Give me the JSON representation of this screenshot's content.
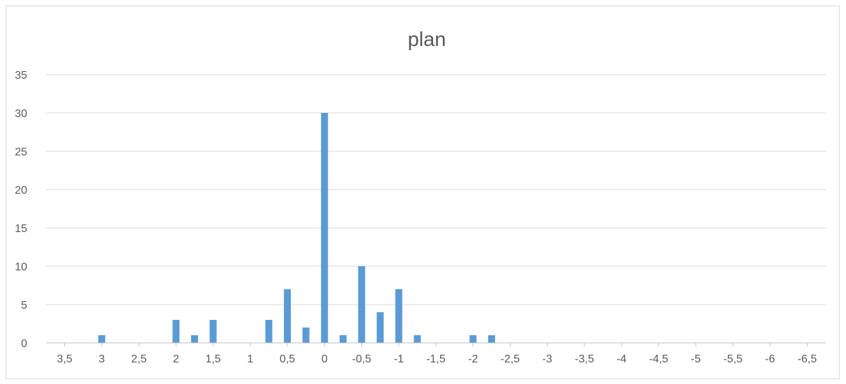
{
  "chart_data": {
    "type": "bar",
    "title": "plan",
    "xlabel": "",
    "ylabel": "",
    "ylim": [
      0,
      35
    ],
    "yticks": [
      "0",
      "5",
      "10",
      "15",
      "20",
      "25",
      "30",
      "35"
    ],
    "y_tick_values": [
      0,
      5,
      10,
      15,
      20,
      25,
      30,
      35
    ],
    "x_reversed": true,
    "x_range": [
      3.75,
      -6.75
    ],
    "xticks": [
      "3,5",
      "3",
      "2,5",
      "2",
      "1,5",
      "1",
      "0,5",
      "0",
      "-0,5",
      "-1",
      "-1,5",
      "-2",
      "-2,5",
      "-3",
      "-3,5",
      "-4",
      "-4,5",
      "-5",
      "-5,5",
      "-6",
      "-6,5"
    ],
    "x_tick_values": [
      3.5,
      3,
      2.5,
      2,
      1.5,
      1,
      0.5,
      0,
      -0.5,
      -1,
      -1.5,
      -2,
      -2.5,
      -3,
      -3.5,
      -4,
      -4.5,
      -5,
      -5.5,
      -6,
      -6.5
    ],
    "x": [
      3,
      2,
      1.75,
      1.5,
      0.75,
      0.5,
      0.25,
      0,
      -0.25,
      -0.5,
      -0.75,
      -1,
      -1.25,
      -2,
      -2.25
    ],
    "values": [
      1,
      3,
      1,
      3,
      3,
      7,
      2,
      30,
      1,
      10,
      4,
      7,
      1,
      1,
      1
    ],
    "grid": "horizontal",
    "legend": "none",
    "colors": {
      "bar": "#5b9bd5",
      "grid": "#d9d9d9",
      "axis": "#bfbfbf",
      "text": "#595959"
    }
  }
}
